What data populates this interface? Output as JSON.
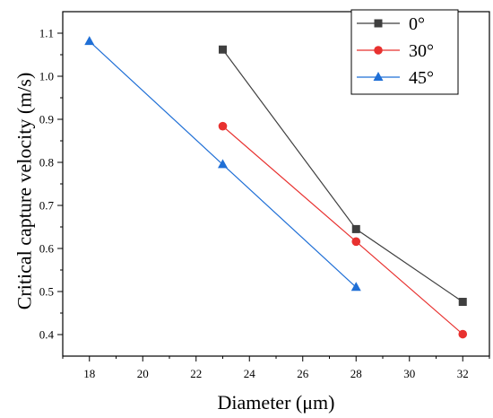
{
  "chart_data": {
    "type": "line",
    "xlabel": "Diameter (μm)",
    "ylabel": "Critical capture velocity (m/s)",
    "xlim": [
      17,
      33
    ],
    "ylim": [
      0.35,
      1.15
    ],
    "x_ticks": [
      18,
      20,
      22,
      24,
      26,
      28,
      30,
      32
    ],
    "y_ticks": [
      0.4,
      0.5,
      0.6,
      0.7,
      0.8,
      0.9,
      1.0,
      1.1
    ],
    "x_tick_labels": [
      "18",
      "20",
      "22",
      "24",
      "26",
      "28",
      "30",
      "32"
    ],
    "y_tick_labels": [
      "0.4",
      "0.5",
      "0.6",
      "0.7",
      "0.8",
      "0.9",
      "1.0",
      "1.1"
    ],
    "grid": false,
    "legend_position": "top-right",
    "series": [
      {
        "name": "0°",
        "marker": "square",
        "color": "#3f3f3f",
        "x": [
          23,
          28,
          32
        ],
        "y": [
          1.062,
          0.645,
          0.476
        ]
      },
      {
        "name": "30°",
        "marker": "circle",
        "color": "#e8312f",
        "x": [
          23,
          28,
          32
        ],
        "y": [
          0.884,
          0.616,
          0.401
        ]
      },
      {
        "name": "45°",
        "marker": "triangle",
        "color": "#1f6fd6",
        "x": [
          18,
          23,
          28
        ],
        "y": [
          1.081,
          0.795,
          0.51
        ]
      }
    ]
  }
}
